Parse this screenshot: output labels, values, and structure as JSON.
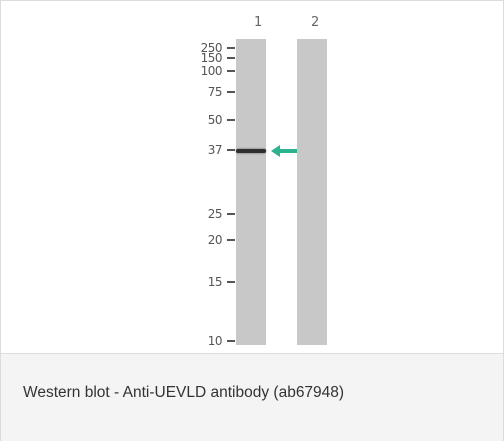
{
  "figure": {
    "lanes": [
      {
        "label": "1"
      },
      {
        "label": "2"
      }
    ],
    "markers": [
      "250",
      "150",
      "100",
      "75",
      "50",
      "37",
      "25",
      "20",
      "15",
      "10"
    ],
    "arrow_color": "#2bb28e",
    "lane_color": "#c8c8c8",
    "band_color": "#2e2e2e"
  },
  "caption": {
    "text": "Western blot - Anti-UEVLD antibody (ab67948)"
  }
}
